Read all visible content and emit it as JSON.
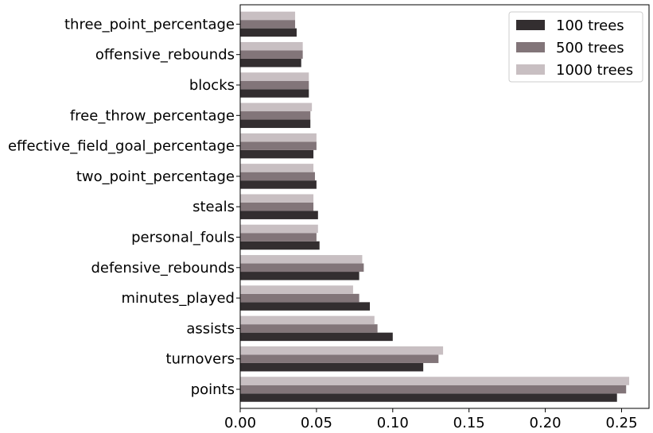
{
  "chart_data": {
    "type": "bar",
    "orientation": "horizontal",
    "title": "",
    "xlabel": "",
    "ylabel": "",
    "categories": [
      "points",
      "turnovers",
      "assists",
      "minutes_played",
      "defensive_rebounds",
      "personal_fouls",
      "steals",
      "two_point_percentage",
      "effective_field_goal_percentage",
      "free_throw_percentage",
      "blocks",
      "offensive_rebounds",
      "three_point_percentage"
    ],
    "series": [
      {
        "name": "100 trees",
        "color": "#332e30",
        "values": [
          0.247,
          0.12,
          0.1,
          0.085,
          0.078,
          0.052,
          0.051,
          0.05,
          0.048,
          0.046,
          0.045,
          0.04,
          0.037
        ]
      },
      {
        "name": "500 trees",
        "color": "#827579",
        "values": [
          0.253,
          0.13,
          0.09,
          0.078,
          0.081,
          0.05,
          0.048,
          0.049,
          0.05,
          0.046,
          0.045,
          0.041,
          0.036
        ]
      },
      {
        "name": "1000 trees",
        "color": "#c8bfc2",
        "values": [
          0.255,
          0.133,
          0.088,
          0.074,
          0.08,
          0.051,
          0.048,
          0.048,
          0.05,
          0.047,
          0.045,
          0.041,
          0.036
        ]
      }
    ],
    "xlim": [
      0,
      0.268
    ],
    "xticks": [
      "0.00",
      "0.05",
      "0.10",
      "0.15",
      "0.20",
      "0.25"
    ],
    "grid": false,
    "legend_position": "top-right"
  }
}
